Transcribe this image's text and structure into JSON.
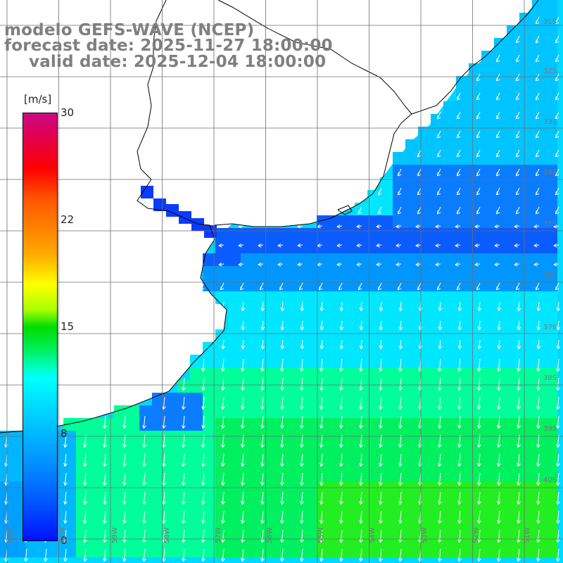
{
  "header": {
    "line1": "modelo GEFS-WAVE (NCEP)",
    "line2": "forecast date: 2025-11-27 18:00:00",
    "line3": "valid date: 2025-12-04 18:00:00"
  },
  "colorbar": {
    "unit": "[m/s]",
    "range": [
      0,
      30
    ],
    "ticks": [
      {
        "value": 30,
        "label": "30"
      },
      {
        "value": 22,
        "label": "22"
      },
      {
        "value": 15,
        "label": "15"
      },
      {
        "value": 8,
        "label": "8"
      },
      {
        "value": 0,
        "label": "0"
      }
    ]
  },
  "map": {
    "field": "wind speed and direction",
    "lat_labels": [
      "31S",
      "32S",
      "33S",
      "34S",
      "35S",
      "36S",
      "37S",
      "38S",
      "39S",
      "40S"
    ],
    "lon_labels": [
      "61W",
      "60W",
      "59W",
      "58W",
      "57W",
      "56W",
      "55W",
      "54W",
      "53W",
      "52W",
      "51W"
    ],
    "colors": {
      "land": "#ffffff",
      "coastline": "#000000",
      "grid": "#6e6e6e",
      "arrows": "#ffffff"
    }
  }
}
